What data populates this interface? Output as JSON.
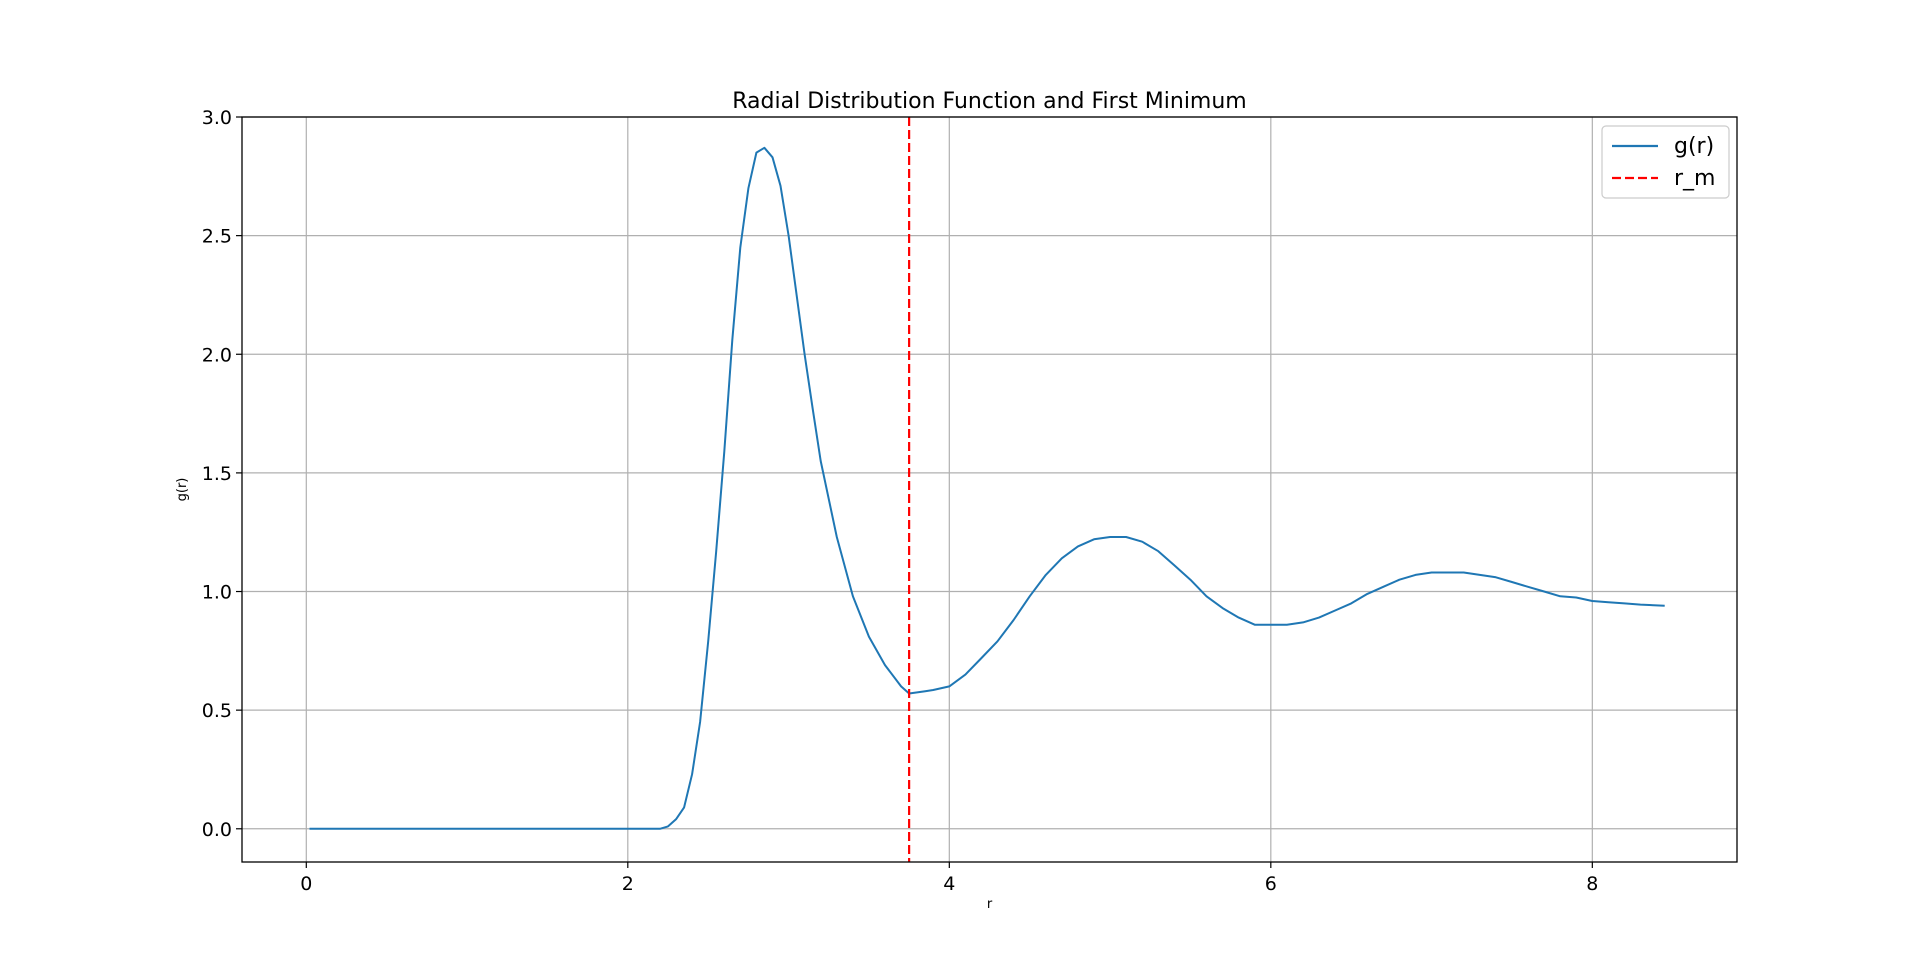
{
  "chart_data": {
    "type": "line",
    "title": "Radial Distribution Function and First Minimum",
    "xlabel": "r",
    "ylabel": "g(r)",
    "xlim": [
      -0.4,
      8.9
    ],
    "ylim": [
      -0.14,
      3.0
    ],
    "xticks": [
      0,
      2,
      4,
      6,
      8
    ],
    "xtick_labels": [
      "0",
      "2",
      "4",
      "6",
      "8"
    ],
    "yticks": [
      0.0,
      0.5,
      1.0,
      1.5,
      2.0,
      2.5,
      3.0
    ],
    "ytick_labels": [
      "0.0",
      "0.5",
      "1.0",
      "1.5",
      "2.0",
      "2.5",
      "3.0"
    ],
    "grid": true,
    "legend_position": "top-right",
    "series": [
      {
        "name": "g(r)",
        "color": "#1f77b4",
        "style": "solid",
        "x": [
          0.02,
          0.5,
          1.0,
          1.5,
          2.0,
          2.2,
          2.25,
          2.3,
          2.35,
          2.4,
          2.45,
          2.5,
          2.55,
          2.6,
          2.65,
          2.7,
          2.75,
          2.8,
          2.85,
          2.9,
          2.95,
          3.0,
          3.05,
          3.1,
          3.15,
          3.2,
          3.3,
          3.4,
          3.5,
          3.6,
          3.7,
          3.75,
          3.8,
          3.85,
          3.9,
          4.0,
          4.1,
          4.2,
          4.3,
          4.4,
          4.5,
          4.6,
          4.7,
          4.8,
          4.9,
          5.0,
          5.1,
          5.2,
          5.3,
          5.4,
          5.5,
          5.6,
          5.7,
          5.8,
          5.9,
          6.0,
          6.1,
          6.2,
          6.3,
          6.4,
          6.5,
          6.6,
          6.7,
          6.8,
          6.9,
          7.0,
          7.1,
          7.2,
          7.3,
          7.4,
          7.5,
          7.6,
          7.7,
          7.8,
          7.9,
          8.0,
          8.1,
          8.2,
          8.3,
          8.45
        ],
        "y": [
          0.0,
          0.0,
          0.0,
          0.0,
          0.0,
          0.0,
          0.01,
          0.04,
          0.09,
          0.23,
          0.45,
          0.79,
          1.17,
          1.59,
          2.06,
          2.45,
          2.7,
          2.85,
          2.87,
          2.83,
          2.71,
          2.5,
          2.25,
          2.0,
          1.77,
          1.55,
          1.23,
          0.98,
          0.81,
          0.69,
          0.6,
          0.57,
          0.575,
          0.58,
          0.585,
          0.6,
          0.65,
          0.72,
          0.79,
          0.88,
          0.98,
          1.07,
          1.14,
          1.19,
          1.22,
          1.23,
          1.23,
          1.21,
          1.17,
          1.11,
          1.05,
          0.98,
          0.93,
          0.89,
          0.86,
          0.86,
          0.86,
          0.87,
          0.89,
          0.92,
          0.95,
          0.99,
          1.02,
          1.05,
          1.07,
          1.08,
          1.08,
          1.08,
          1.07,
          1.06,
          1.04,
          1.02,
          1.0,
          0.98,
          0.975,
          0.96,
          0.955,
          0.95,
          0.945,
          0.94
        ]
      },
      {
        "name": "r_m",
        "color": "#ff0000",
        "style": "dashed",
        "type": "vline",
        "x": 3.75
      }
    ]
  }
}
